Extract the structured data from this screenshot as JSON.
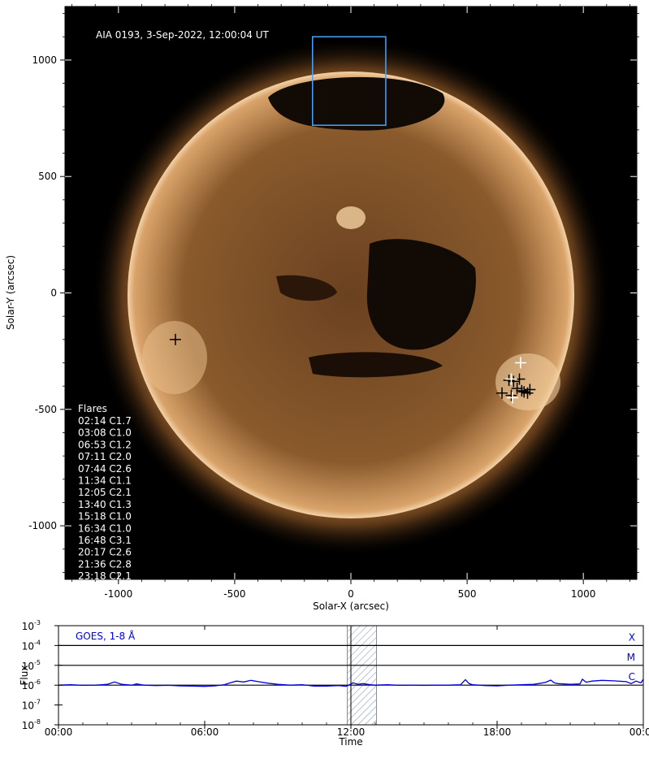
{
  "chart_data": [
    {
      "type": "image",
      "title": "AIA 0193, 3-Sep-2022, 12:00:04 UT",
      "xlabel": "Solar-X (arcsec)",
      "ylabel": "Solar-Y (arcsec)",
      "xlim": [
        -1230,
        1230
      ],
      "ylim": [
        -1230,
        1230
      ],
      "xticks": [
        -1000,
        -500,
        0,
        500,
        1000
      ],
      "yticks": [
        1000,
        500,
        0,
        -500,
        -1000
      ],
      "colors": {
        "background": "#000000",
        "corona": "#a86c34",
        "box": "#4aa3ff",
        "text": "#ffffff"
      },
      "region_box": {
        "x": [
          -165,
          150
        ],
        "y": [
          720,
          1100
        ]
      },
      "flare_markers_label": "Flares",
      "flares": [
        {
          "time": "02:14",
          "class": "C1.7",
          "x": 650,
          "y": -430,
          "color": "black"
        },
        {
          "time": "03:08",
          "class": "C1.0",
          "x": 680,
          "y": -375,
          "color": "black"
        },
        {
          "time": "06:53",
          "class": "C1.2",
          "x": 700,
          "y": -380,
          "color": "black"
        },
        {
          "time": "07:11",
          "class": "C2.0",
          "x": 690,
          "y": -440,
          "color": "black"
        },
        {
          "time": "07:44",
          "class": "C2.6",
          "x": 745,
          "y": -425,
          "color": "black"
        },
        {
          "time": "11:34",
          "class": "C1.1",
          "x": 725,
          "y": -370,
          "color": "black"
        },
        {
          "time": "12:05",
          "class": "C2.1",
          "x": 735,
          "y": -420,
          "color": "black"
        },
        {
          "time": "13:40",
          "class": "C1.3",
          "x": 770,
          "y": -415,
          "color": "black"
        },
        {
          "time": "15:18",
          "class": "C1.0",
          "x": 715,
          "y": -410,
          "color": "black"
        },
        {
          "time": "16:34",
          "class": "C1.0",
          "x": -755,
          "y": -200,
          "color": "black"
        },
        {
          "time": "16:48",
          "class": "C3.1",
          "x": 760,
          "y": -430,
          "color": "black"
        },
        {
          "time": "20:17",
          "class": "C2.6",
          "x": 730,
          "y": -300,
          "color": "white"
        },
        {
          "time": "21:36",
          "class": "C2.8",
          "x": 690,
          "y": -370,
          "color": "white"
        },
        {
          "time": "23:18",
          "class": "C2.1",
          "x": 695,
          "y": -450,
          "color": "white"
        }
      ]
    },
    {
      "type": "line",
      "title": "GOES, 1-8 Å",
      "xlabel": "Time",
      "ylabel": "Flux",
      "xticks": [
        "00:00",
        "06:00",
        "12:00",
        "18:00",
        "00:00"
      ],
      "xlim_hours": [
        0,
        24
      ],
      "yscale": "log",
      "ylim": [
        1e-08,
        0.001
      ],
      "yticks": [
        {
          "base": "10",
          "exp": "-3",
          "value": 0.001
        },
        {
          "base": "10",
          "exp": "-4",
          "value": 0.0001
        },
        {
          "base": "10",
          "exp": "-5",
          "value": 1e-05
        },
        {
          "base": "10",
          "exp": "-6",
          "value": 1e-06
        },
        {
          "base": "10",
          "exp": "-7",
          "value": 1e-07
        },
        {
          "base": "10",
          "exp": "-8",
          "value": 1e-08
        }
      ],
      "class_lines": [
        {
          "label": "X",
          "value": 0.0001
        },
        {
          "label": "M",
          "value": 1e-05
        },
        {
          "label": "C",
          "value": 1e-06
        }
      ],
      "shaded_interval_hours": [
        11.85,
        13.05
      ],
      "cursor_hour": 12.0,
      "series": [
        {
          "color": "#0000dd",
          "points": [
            [
              0.0,
              1e-06
            ],
            [
              0.5,
              1.05e-06
            ],
            [
              1.0,
              9.8e-07
            ],
            [
              1.5,
              1e-06
            ],
            [
              2.0,
              1.1e-06
            ],
            [
              2.3,
              1.45e-06
            ],
            [
              2.6,
              1.1e-06
            ],
            [
              3.0,
              1e-06
            ],
            [
              3.2,
              1.15e-06
            ],
            [
              3.5,
              1e-06
            ],
            [
              4.0,
              9.5e-07
            ],
            [
              4.5,
              9.8e-07
            ],
            [
              5.0,
              9.2e-07
            ],
            [
              5.5,
              9e-07
            ],
            [
              6.0,
              8.7e-07
            ],
            [
              6.4,
              9.2e-07
            ],
            [
              6.8,
              1.05e-06
            ],
            [
              7.0,
              1.25e-06
            ],
            [
              7.3,
              1.6e-06
            ],
            [
              7.6,
              1.45e-06
            ],
            [
              7.9,
              1.75e-06
            ],
            [
              8.2,
              1.5e-06
            ],
            [
              8.6,
              1.25e-06
            ],
            [
              9.0,
              1.1e-06
            ],
            [
              9.5,
              1e-06
            ],
            [
              10.0,
              1.05e-06
            ],
            [
              10.5,
              9e-07
            ],
            [
              11.0,
              9e-07
            ],
            [
              11.5,
              9.5e-07
            ],
            [
              11.8,
              8.8e-07
            ],
            [
              12.1,
              1.3e-06
            ],
            [
              12.3,
              1.1e-06
            ],
            [
              12.5,
              1.2e-06
            ],
            [
              12.8,
              1.05e-06
            ],
            [
              13.0,
              1e-06
            ],
            [
              13.5,
              1.05e-06
            ],
            [
              14.0,
              9.8e-07
            ],
            [
              14.5,
              1e-06
            ],
            [
              15.0,
              9.7e-07
            ],
            [
              15.5,
              1e-06
            ],
            [
              16.0,
              1e-06
            ],
            [
              16.5,
              1.05e-06
            ],
            [
              16.7,
              1.9e-06
            ],
            [
              16.85,
              1.2e-06
            ],
            [
              17.0,
              1.05e-06
            ],
            [
              17.5,
              9.5e-07
            ],
            [
              18.0,
              9.2e-07
            ],
            [
              18.5,
              1e-06
            ],
            [
              19.0,
              1.05e-06
            ],
            [
              19.5,
              1.1e-06
            ],
            [
              19.8,
              1.25e-06
            ],
            [
              20.0,
              1.4e-06
            ],
            [
              20.2,
              1.8e-06
            ],
            [
              20.35,
              1.3e-06
            ],
            [
              20.5,
              1.2e-06
            ],
            [
              21.0,
              1.1e-06
            ],
            [
              21.4,
              1.15e-06
            ],
            [
              21.5,
              2e-06
            ],
            [
              21.65,
              1.4e-06
            ],
            [
              21.9,
              1.6e-06
            ],
            [
              22.3,
              1.75e-06
            ],
            [
              22.8,
              1.65e-06
            ],
            [
              23.3,
              1.5e-06
            ],
            [
              23.5,
              1.2e-06
            ],
            [
              23.7,
              1.6e-06
            ],
            [
              23.9,
              1.3e-06
            ],
            [
              24.0,
              2e-06
            ]
          ]
        }
      ]
    }
  ]
}
